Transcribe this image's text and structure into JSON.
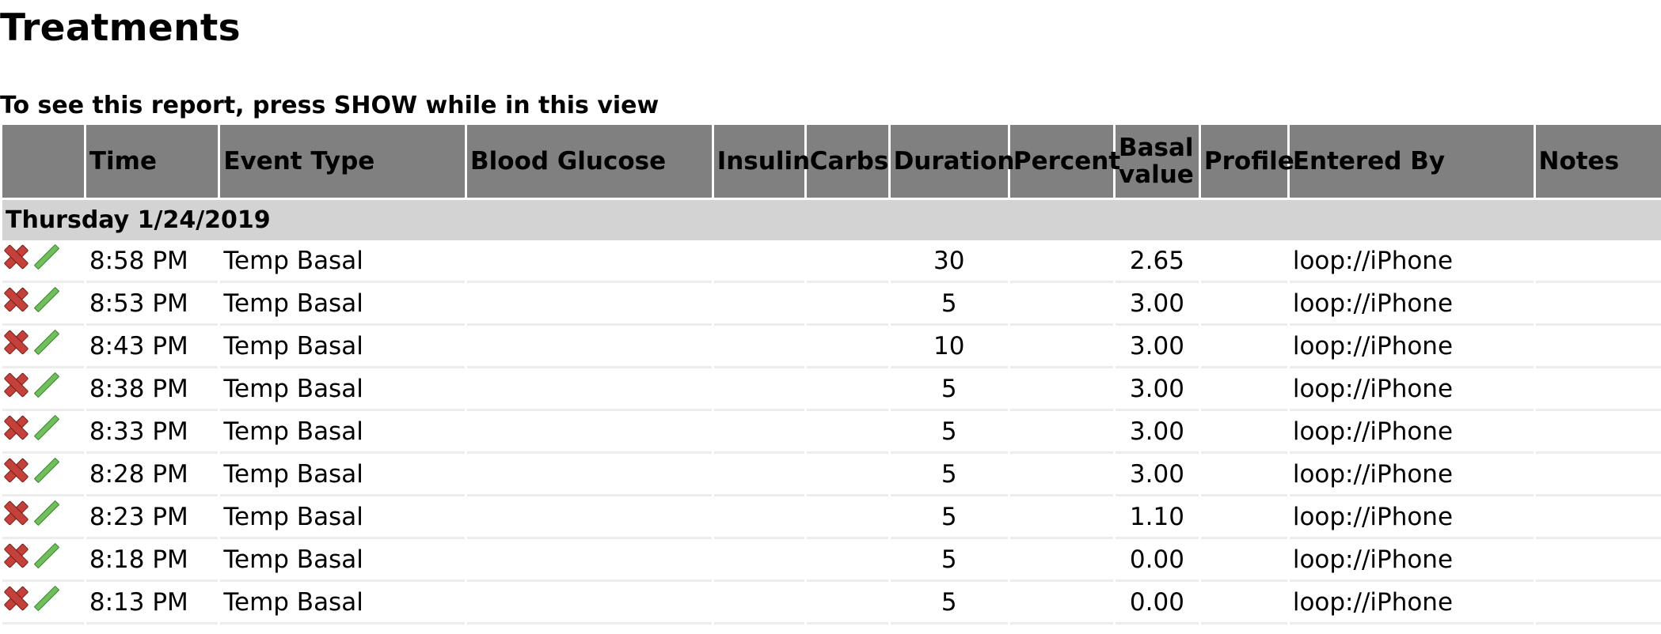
{
  "page": {
    "title": "Treatments",
    "subtitle": "To see this report, press SHOW while in this view"
  },
  "table": {
    "headers": [
      "",
      "Time",
      "Event Type",
      "Blood Glucose",
      "Insulin",
      "Carbs",
      "Duration",
      "Percent",
      "Basal value",
      "Profile",
      "Entered By",
      "Notes"
    ],
    "day_label": "Thursday 1/24/2019",
    "rows": [
      {
        "time": "8:58 PM",
        "event_type": "Temp Basal",
        "blood_glucose": "",
        "insulin": "",
        "carbs": "",
        "duration": "30",
        "percent": "",
        "basal_value": "2.65",
        "profile": "",
        "entered_by": "loop://iPhone",
        "notes": ""
      },
      {
        "time": "8:53 PM",
        "event_type": "Temp Basal",
        "blood_glucose": "",
        "insulin": "",
        "carbs": "",
        "duration": "5",
        "percent": "",
        "basal_value": "3.00",
        "profile": "",
        "entered_by": "loop://iPhone",
        "notes": ""
      },
      {
        "time": "8:43 PM",
        "event_type": "Temp Basal",
        "blood_glucose": "",
        "insulin": "",
        "carbs": "",
        "duration": "10",
        "percent": "",
        "basal_value": "3.00",
        "profile": "",
        "entered_by": "loop://iPhone",
        "notes": ""
      },
      {
        "time": "8:38 PM",
        "event_type": "Temp Basal",
        "blood_glucose": "",
        "insulin": "",
        "carbs": "",
        "duration": "5",
        "percent": "",
        "basal_value": "3.00",
        "profile": "",
        "entered_by": "loop://iPhone",
        "notes": ""
      },
      {
        "time": "8:33 PM",
        "event_type": "Temp Basal",
        "blood_glucose": "",
        "insulin": "",
        "carbs": "",
        "duration": "5",
        "percent": "",
        "basal_value": "3.00",
        "profile": "",
        "entered_by": "loop://iPhone",
        "notes": ""
      },
      {
        "time": "8:28 PM",
        "event_type": "Temp Basal",
        "blood_glucose": "",
        "insulin": "",
        "carbs": "",
        "duration": "5",
        "percent": "",
        "basal_value": "3.00",
        "profile": "",
        "entered_by": "loop://iPhone",
        "notes": ""
      },
      {
        "time": "8:23 PM",
        "event_type": "Temp Basal",
        "blood_glucose": "",
        "insulin": "",
        "carbs": "",
        "duration": "5",
        "percent": "",
        "basal_value": "1.10",
        "profile": "",
        "entered_by": "loop://iPhone",
        "notes": ""
      },
      {
        "time": "8:18 PM",
        "event_type": "Temp Basal",
        "blood_glucose": "",
        "insulin": "",
        "carbs": "",
        "duration": "5",
        "percent": "",
        "basal_value": "0.00",
        "profile": "",
        "entered_by": "loop://iPhone",
        "notes": ""
      },
      {
        "time": "8:13 PM",
        "event_type": "Temp Basal",
        "blood_glucose": "",
        "insulin": "",
        "carbs": "",
        "duration": "5",
        "percent": "",
        "basal_value": "0.00",
        "profile": "",
        "entered_by": "loop://iPhone",
        "notes": ""
      }
    ]
  },
  "icons": {
    "delete": "delete-x-icon",
    "edit": "edit-pencil-icon"
  },
  "colors": {
    "header_bg": "#808080",
    "day_row_bg": "#d3d3d3",
    "delete_icon": "#c4403a",
    "edit_icon": "#6fbf5a"
  }
}
